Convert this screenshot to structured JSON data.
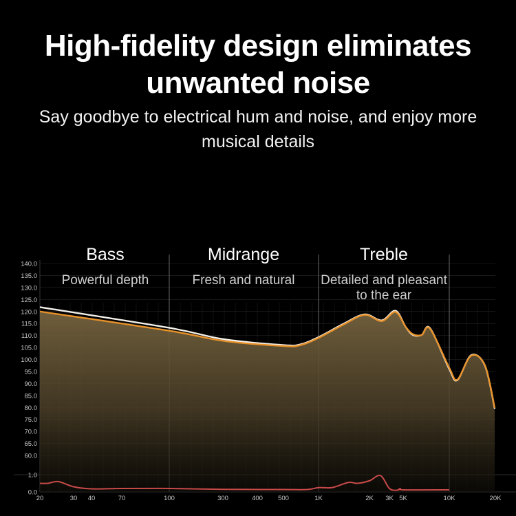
{
  "header": {
    "title": "High-fidelity design eliminates unwanted noise",
    "subtitle": "Say goodbye to electrical hum and noise, and enjoy more musical details"
  },
  "sections": [
    {
      "heading": "Bass",
      "description": "Powerful depth"
    },
    {
      "heading": "Midrange",
      "description": "Fresh and natural"
    },
    {
      "heading": "Treble",
      "description": "Detailed and pleasant to the ear"
    }
  ],
  "colors": {
    "background": "#000000",
    "response_orange": "#e8922a",
    "response_white": "#f4f1ea",
    "fill": "#6e5d3c",
    "distortion": "#c94a4a",
    "grid": "#3a3a3a"
  },
  "chart_data": {
    "type": "line",
    "x_scale": "log",
    "x_tick_labels": [
      "20",
      "30",
      "40",
      "70",
      "100",
      "300",
      "400",
      "500",
      "1K",
      "2K",
      "3K",
      "5K",
      "10K",
      "20K"
    ],
    "x_tick_values": [
      20,
      30,
      40,
      70,
      100,
      300,
      400,
      500,
      1000,
      2000,
      3000,
      5000,
      10000,
      20000
    ],
    "y_tick_labels_upper": [
      "140.0",
      "135.0",
      "130.0",
      "125.0",
      "120.0",
      "115.0",
      "110.0",
      "105.0",
      "100.0",
      "95.0",
      "90.0",
      "85.0",
      "80.0",
      "75.0",
      "70.0",
      "65.0",
      "60.0"
    ],
    "y_tick_labels_lower": [
      "1.0",
      "0.0"
    ],
    "ylim_upper": [
      60,
      140
    ],
    "ylim_lower": [
      0,
      1
    ],
    "grid": true,
    "series": [
      {
        "color": "white",
        "filled": false,
        "x": [
          20,
          100,
          300,
          500,
          700,
          1000,
          1400,
          1870,
          2570,
          3770,
          5200,
          5800,
          6600,
          7500,
          10000,
          11300,
          13900,
          17100,
          19800
        ],
        "y": [
          121.8,
          113.2,
          108.5,
          106,
          106.3,
          109.3,
          114.8,
          118.8,
          116.3,
          120.3,
          113.5,
          110.2,
          110.2,
          113,
          96,
          91.4,
          101.8,
          97.4,
          79.5
        ]
      },
      {
        "color": "orange",
        "filled": true,
        "x": [
          20,
          100,
          300,
          500,
          700,
          1000,
          1400,
          1870,
          2570,
          3770,
          5200,
          5800,
          6600,
          7500,
          10000,
          11300,
          13900,
          17100,
          19800
        ],
        "y": [
          120,
          112,
          107.8,
          105.6,
          106,
          109,
          114.5,
          118.6,
          116,
          119.8,
          113.5,
          110.5,
          110.2,
          112.8,
          96.5,
          91.6,
          101.6,
          97.6,
          79.8
        ]
      },
      {
        "color": "red",
        "axis": "lower",
        "filled": false,
        "x": [
          20,
          22,
          25,
          30,
          40,
          70,
          100,
          300,
          500,
          800,
          1000,
          1200,
          1500,
          1700,
          2000,
          2500,
          3000,
          4000,
          4500,
          5000,
          10000
        ],
        "y": [
          0.5,
          0.5,
          0.6,
          0.3,
          0.18,
          0.2,
          0.2,
          0.15,
          0.14,
          0.14,
          0.25,
          0.25,
          0.55,
          0.5,
          0.65,
          0.95,
          0.2,
          0.1,
          0.2,
          0.12,
          0.12
        ]
      }
    ]
  }
}
